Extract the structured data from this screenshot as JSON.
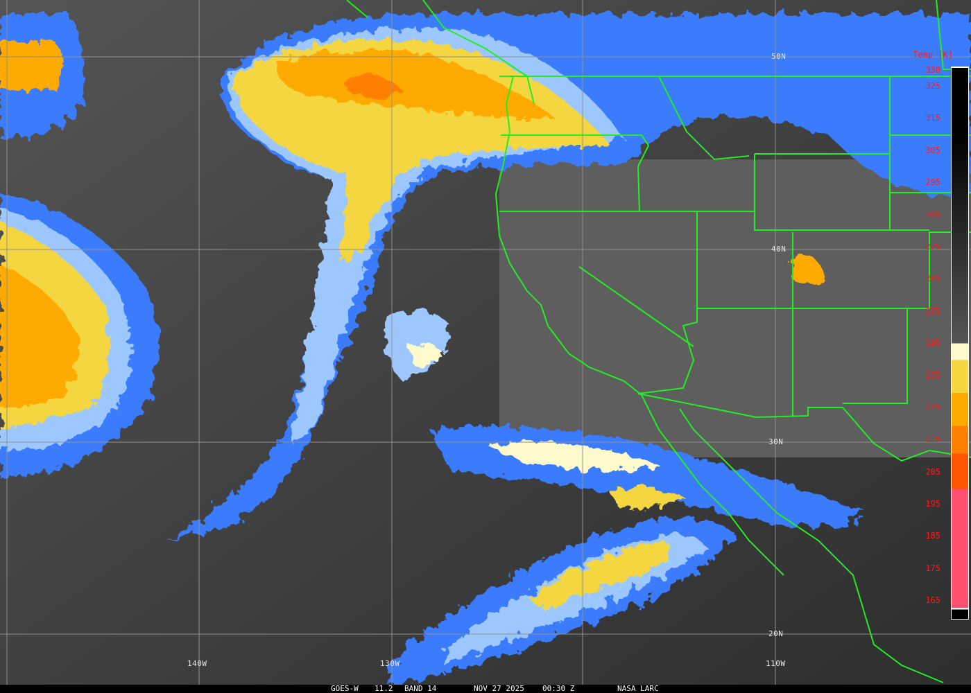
{
  "image": {
    "satellite": "GOES-W",
    "wavelength": "11.2",
    "band": "BAND 14",
    "date": "NOV 27 2025",
    "time": "00:30 Z",
    "credit": "NASA LARC"
  },
  "colorbar": {
    "title": "Temp [K]",
    "ticks": [
      "330",
      "325",
      "315",
      "305",
      "295",
      "285",
      "275",
      "265",
      "255",
      "245",
      "235",
      "225",
      "215",
      "205",
      "195",
      "185",
      "175",
      "165"
    ],
    "colors": {
      "warm": "#000000",
      "mid_gray": "#a0a0a0",
      "blue": "#3a7cff",
      "light_blue": "#9cc8ff",
      "cyan": "#b8f4ff",
      "cream": "#fffacc",
      "yellow": "#f4d640",
      "orange": "#ffaa00",
      "dark_orange": "#ff8000",
      "red_orange": "#ff5500",
      "pink": "#ff5070"
    }
  },
  "grid": {
    "lat_labels": [
      "50N",
      "40N",
      "30N",
      "20N"
    ],
    "lon_labels": [
      "140W",
      "130W",
      "110W"
    ]
  },
  "overlay_colors": {
    "borders": "#22ee22",
    "grid": "#909090"
  }
}
